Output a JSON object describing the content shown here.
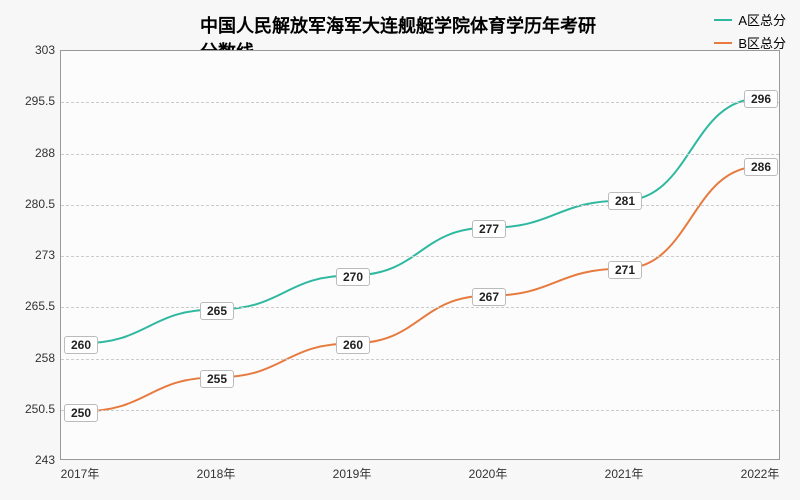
{
  "chart": {
    "type": "line",
    "title": "中国人民解放军海军大连舰艇学院体育学历年考研分数线",
    "title_fontsize": 18,
    "background_color": "#f7f7f7",
    "plot_background": "#fcfcfc",
    "grid_color": "#cccccc",
    "grid_dash": true,
    "border_color": "#999999",
    "categories": [
      "2017年",
      "2018年",
      "2019年",
      "2020年",
      "2021年",
      "2022年"
    ],
    "ylim": [
      243,
      303
    ],
    "ytick_step": 7.5,
    "yticks": [
      243,
      250.5,
      258,
      265.5,
      273,
      280.5,
      288,
      295.5,
      303
    ],
    "label_fontsize": 12,
    "line_width": 2,
    "data_label_bg": "#ffffff",
    "data_label_border": "#bbbbbb",
    "series": [
      {
        "name": "A区总分",
        "color": "#2fb8a0",
        "values": [
          260,
          265,
          270,
          277,
          281,
          296
        ]
      },
      {
        "name": "B区总分",
        "color": "#e67a3f",
        "values": [
          250,
          255,
          260,
          267,
          271,
          286
        ]
      }
    ]
  }
}
